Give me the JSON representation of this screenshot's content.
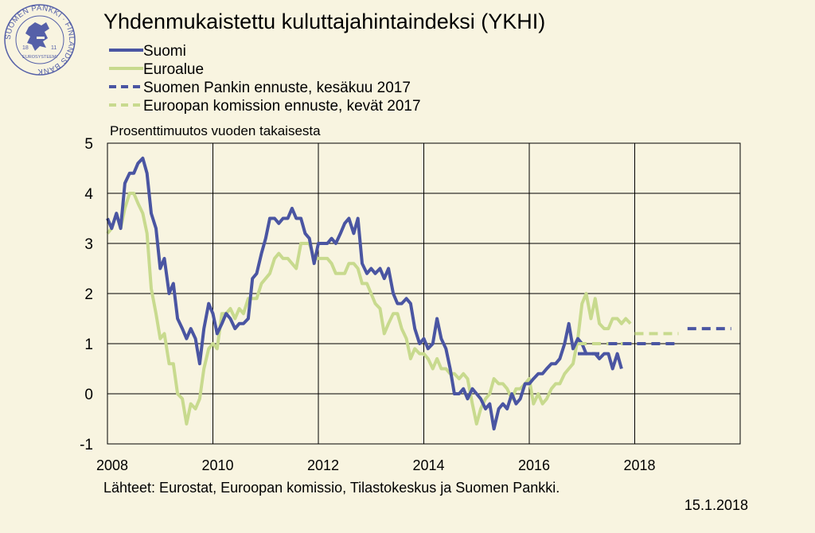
{
  "title": "Yhdenmukaistettu kuluttajahintaindeksi (YKHI)",
  "logo": {
    "outer_text": "SUOMEN PANKKI · FINLANDS BANK",
    "inner_text": "EUROSYSTEEMI",
    "year_left": "18",
    "year_right": "11"
  },
  "source_note": "Lähteet: Eurostat, Euroopan komissio, Tilastokeskus ja Suomen Pankki.",
  "date": "15.1.2018",
  "chart_data": {
    "type": "line",
    "ylabel": "Prosenttimuutos vuoden takaisesta",
    "ylim": [
      -1,
      5
    ],
    "yticks": [
      -1,
      0,
      1,
      2,
      3,
      4,
      5
    ],
    "xlim": [
      2008.0,
      2020.0
    ],
    "xticks": [
      2008,
      2010,
      2012,
      2014,
      2016,
      2018
    ],
    "grid": true,
    "legend_position": "top-left",
    "series": [
      {
        "name": "Suomi",
        "color": "#4a55a2",
        "dash": false,
        "values": [
          [
            2008.0,
            3.5
          ],
          [
            2008.08,
            3.3
          ],
          [
            2008.17,
            3.6
          ],
          [
            2008.25,
            3.3
          ],
          [
            2008.33,
            4.2
          ],
          [
            2008.42,
            4.4
          ],
          [
            2008.5,
            4.4
          ],
          [
            2008.58,
            4.6
          ],
          [
            2008.67,
            4.7
          ],
          [
            2008.75,
            4.4
          ],
          [
            2008.83,
            3.6
          ],
          [
            2008.92,
            3.3
          ],
          [
            2009.0,
            2.5
          ],
          [
            2009.08,
            2.7
          ],
          [
            2009.17,
            2.0
          ],
          [
            2009.25,
            2.2
          ],
          [
            2009.33,
            1.5
          ],
          [
            2009.42,
            1.3
          ],
          [
            2009.5,
            1.1
          ],
          [
            2009.58,
            1.3
          ],
          [
            2009.67,
            1.1
          ],
          [
            2009.75,
            0.6
          ],
          [
            2009.83,
            1.3
          ],
          [
            2009.92,
            1.8
          ],
          [
            2010.0,
            1.6
          ],
          [
            2010.08,
            1.2
          ],
          [
            2010.17,
            1.4
          ],
          [
            2010.25,
            1.6
          ],
          [
            2010.33,
            1.5
          ],
          [
            2010.42,
            1.3
          ],
          [
            2010.5,
            1.4
          ],
          [
            2010.58,
            1.4
          ],
          [
            2010.67,
            1.5
          ],
          [
            2010.75,
            2.3
          ],
          [
            2010.83,
            2.4
          ],
          [
            2010.92,
            2.8
          ],
          [
            2011.0,
            3.1
          ],
          [
            2011.08,
            3.5
          ],
          [
            2011.17,
            3.5
          ],
          [
            2011.25,
            3.4
          ],
          [
            2011.33,
            3.5
          ],
          [
            2011.42,
            3.5
          ],
          [
            2011.5,
            3.7
          ],
          [
            2011.58,
            3.5
          ],
          [
            2011.67,
            3.5
          ],
          [
            2011.75,
            3.2
          ],
          [
            2011.83,
            3.1
          ],
          [
            2011.92,
            2.6
          ],
          [
            2012.0,
            3.0
          ],
          [
            2012.08,
            3.0
          ],
          [
            2012.17,
            3.0
          ],
          [
            2012.25,
            3.1
          ],
          [
            2012.33,
            3.0
          ],
          [
            2012.42,
            3.2
          ],
          [
            2012.5,
            3.4
          ],
          [
            2012.58,
            3.5
          ],
          [
            2012.67,
            3.2
          ],
          [
            2012.75,
            3.5
          ],
          [
            2012.83,
            2.6
          ],
          [
            2012.92,
            2.4
          ],
          [
            2013.0,
            2.5
          ],
          [
            2013.08,
            2.4
          ],
          [
            2013.17,
            2.5
          ],
          [
            2013.25,
            2.3
          ],
          [
            2013.33,
            2.5
          ],
          [
            2013.42,
            2.0
          ],
          [
            2013.5,
            1.8
          ],
          [
            2013.58,
            1.8
          ],
          [
            2013.67,
            1.9
          ],
          [
            2013.75,
            1.8
          ],
          [
            2013.83,
            1.3
          ],
          [
            2013.92,
            1.0
          ],
          [
            2014.0,
            1.1
          ],
          [
            2014.08,
            0.9
          ],
          [
            2014.17,
            1.0
          ],
          [
            2014.25,
            1.5
          ],
          [
            2014.33,
            1.1
          ],
          [
            2014.42,
            0.9
          ],
          [
            2014.5,
            0.5
          ],
          [
            2014.58,
            0.0
          ],
          [
            2014.67,
            0.0
          ],
          [
            2014.75,
            0.1
          ],
          [
            2014.83,
            -0.1
          ],
          [
            2014.92,
            0.1
          ],
          [
            2015.0,
            0.0
          ],
          [
            2015.08,
            -0.1
          ],
          [
            2015.17,
            -0.3
          ],
          [
            2015.25,
            -0.2
          ],
          [
            2015.33,
            -0.7
          ],
          [
            2015.42,
            -0.3
          ],
          [
            2015.5,
            -0.2
          ],
          [
            2015.58,
            -0.3
          ],
          [
            2015.67,
            0.0
          ],
          [
            2015.75,
            -0.2
          ],
          [
            2015.83,
            -0.1
          ],
          [
            2015.92,
            0.2
          ],
          [
            2016.0,
            0.2
          ],
          [
            2016.08,
            0.3
          ],
          [
            2016.17,
            0.4
          ],
          [
            2016.25,
            0.4
          ],
          [
            2016.33,
            0.5
          ],
          [
            2016.42,
            0.6
          ],
          [
            2016.5,
            0.6
          ],
          [
            2016.58,
            0.7
          ],
          [
            2016.67,
            1.0
          ],
          [
            2016.75,
            1.4
          ],
          [
            2016.83,
            0.9
          ],
          [
            2016.92,
            1.1
          ],
          [
            2017.0,
            1.0
          ],
          [
            2017.08,
            0.8
          ],
          [
            2017.17,
            0.8
          ],
          [
            2017.25,
            0.8
          ],
          [
            2017.33,
            0.7
          ],
          [
            2017.42,
            0.8
          ],
          [
            2017.5,
            0.8
          ],
          [
            2017.58,
            0.5
          ],
          [
            2017.67,
            0.8
          ],
          [
            2017.75,
            0.5
          ]
        ]
      },
      {
        "name": "Euroalue",
        "color": "#c8da8e",
        "dash": false,
        "values": [
          [
            2008.0,
            3.2
          ],
          [
            2008.08,
            3.3
          ],
          [
            2008.17,
            3.6
          ],
          [
            2008.25,
            3.3
          ],
          [
            2008.33,
            3.7
          ],
          [
            2008.42,
            4.0
          ],
          [
            2008.5,
            4.0
          ],
          [
            2008.58,
            3.8
          ],
          [
            2008.67,
            3.6
          ],
          [
            2008.75,
            3.2
          ],
          [
            2008.83,
            2.1
          ],
          [
            2008.92,
            1.6
          ],
          [
            2009.0,
            1.1
          ],
          [
            2009.08,
            1.2
          ],
          [
            2009.17,
            0.6
          ],
          [
            2009.25,
            0.6
          ],
          [
            2009.33,
            0.0
          ],
          [
            2009.42,
            -0.1
          ],
          [
            2009.5,
            -0.6
          ],
          [
            2009.58,
            -0.2
          ],
          [
            2009.67,
            -0.3
          ],
          [
            2009.75,
            -0.1
          ],
          [
            2009.83,
            0.5
          ],
          [
            2009.92,
            0.9
          ],
          [
            2010.0,
            1.0
          ],
          [
            2010.08,
            0.9
          ],
          [
            2010.17,
            1.6
          ],
          [
            2010.25,
            1.6
          ],
          [
            2010.33,
            1.7
          ],
          [
            2010.42,
            1.5
          ],
          [
            2010.5,
            1.7
          ],
          [
            2010.58,
            1.6
          ],
          [
            2010.67,
            1.9
          ],
          [
            2010.75,
            1.9
          ],
          [
            2010.83,
            1.9
          ],
          [
            2010.92,
            2.2
          ],
          [
            2011.0,
            2.3
          ],
          [
            2011.08,
            2.4
          ],
          [
            2011.17,
            2.7
          ],
          [
            2011.25,
            2.8
          ],
          [
            2011.33,
            2.7
          ],
          [
            2011.42,
            2.7
          ],
          [
            2011.5,
            2.6
          ],
          [
            2011.58,
            2.5
          ],
          [
            2011.67,
            3.0
          ],
          [
            2011.75,
            3.0
          ],
          [
            2011.83,
            3.0
          ],
          [
            2011.92,
            2.7
          ],
          [
            2012.0,
            2.7
          ],
          [
            2012.08,
            2.7
          ],
          [
            2012.17,
            2.7
          ],
          [
            2012.25,
            2.6
          ],
          [
            2012.33,
            2.4
          ],
          [
            2012.42,
            2.4
          ],
          [
            2012.5,
            2.4
          ],
          [
            2012.58,
            2.6
          ],
          [
            2012.67,
            2.6
          ],
          [
            2012.75,
            2.5
          ],
          [
            2012.83,
            2.2
          ],
          [
            2012.92,
            2.2
          ],
          [
            2013.0,
            2.0
          ],
          [
            2013.08,
            1.8
          ],
          [
            2013.17,
            1.7
          ],
          [
            2013.25,
            1.2
          ],
          [
            2013.33,
            1.4
          ],
          [
            2013.42,
            1.6
          ],
          [
            2013.5,
            1.6
          ],
          [
            2013.58,
            1.3
          ],
          [
            2013.67,
            1.1
          ],
          [
            2013.75,
            0.7
          ],
          [
            2013.83,
            0.9
          ],
          [
            2013.92,
            0.8
          ],
          [
            2014.0,
            0.8
          ],
          [
            2014.08,
            0.7
          ],
          [
            2014.17,
            0.5
          ],
          [
            2014.25,
            0.7
          ],
          [
            2014.33,
            0.5
          ],
          [
            2014.42,
            0.5
          ],
          [
            2014.5,
            0.4
          ],
          [
            2014.58,
            0.4
          ],
          [
            2014.67,
            0.3
          ],
          [
            2014.75,
            0.4
          ],
          [
            2014.83,
            0.3
          ],
          [
            2014.92,
            -0.2
          ],
          [
            2015.0,
            -0.6
          ],
          [
            2015.08,
            -0.3
          ],
          [
            2015.17,
            -0.1
          ],
          [
            2015.25,
            0.0
          ],
          [
            2015.33,
            0.3
          ],
          [
            2015.42,
            0.2
          ],
          [
            2015.5,
            0.2
          ],
          [
            2015.58,
            0.1
          ],
          [
            2015.67,
            -0.1
          ],
          [
            2015.75,
            0.1
          ],
          [
            2015.83,
            0.1
          ],
          [
            2015.92,
            0.2
          ],
          [
            2016.0,
            0.3
          ],
          [
            2016.08,
            -0.2
          ],
          [
            2016.17,
            0.0
          ],
          [
            2016.25,
            -0.2
          ],
          [
            2016.33,
            -0.1
          ],
          [
            2016.42,
            0.1
          ],
          [
            2016.5,
            0.2
          ],
          [
            2016.58,
            0.2
          ],
          [
            2016.67,
            0.4
          ],
          [
            2016.75,
            0.5
          ],
          [
            2016.83,
            0.6
          ],
          [
            2016.92,
            1.1
          ],
          [
            2017.0,
            1.8
          ],
          [
            2017.08,
            2.0
          ],
          [
            2017.17,
            1.5
          ],
          [
            2017.25,
            1.9
          ],
          [
            2017.33,
            1.4
          ],
          [
            2017.42,
            1.3
          ],
          [
            2017.5,
            1.3
          ],
          [
            2017.58,
            1.5
          ],
          [
            2017.67,
            1.5
          ],
          [
            2017.75,
            1.4
          ],
          [
            2017.83,
            1.5
          ],
          [
            2017.92,
            1.4
          ]
        ]
      },
      {
        "name": "Suomen Pankin ennuste, kesäkuu 2017",
        "color": "#4a55a2",
        "dash": true,
        "values": [
          [
            2016.92,
            0.8
          ],
          [
            2017.33,
            0.8
          ],
          [
            2017.5,
            1.0
          ],
          [
            2018.83,
            1.0
          ],
          [
            2019.0,
            1.3
          ],
          [
            2019.83,
            1.3
          ]
        ]
      },
      {
        "name": "Euroopan komission ennuste, kevät 2017",
        "color": "#c8da8e",
        "dash": true,
        "values": [
          [
            2016.92,
            1.0
          ],
          [
            2017.92,
            1.0
          ],
          [
            2018.0,
            1.2
          ],
          [
            2018.83,
            1.2
          ]
        ]
      }
    ]
  }
}
